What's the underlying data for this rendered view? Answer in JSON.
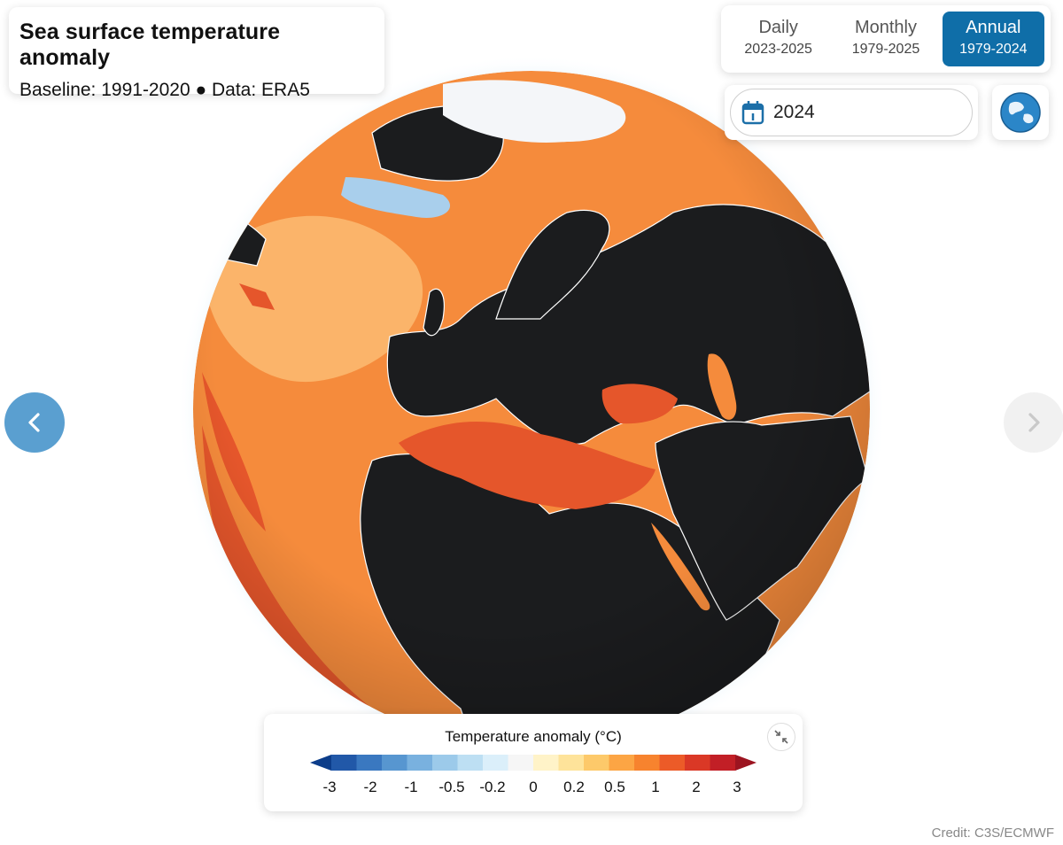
{
  "title": "Sea surface temperature anomaly",
  "subtitle": "Baseline: 1991-2020 ● Data: ERA5",
  "tabs": [
    {
      "label": "Daily",
      "range": "2023-2025",
      "active": false
    },
    {
      "label": "Monthly",
      "range": "1979-2025",
      "active": false
    },
    {
      "label": "Annual",
      "range": "1979-2024",
      "active": true
    }
  ],
  "date": {
    "value": "2024",
    "icon": "calendar-icon"
  },
  "globe_button": {
    "icon": "globe-icon"
  },
  "navigation": {
    "prev_icon": "chevron-left-icon",
    "next_icon": "chevron-right-icon"
  },
  "legend": {
    "title": "Temperature anomaly (°C)",
    "tick_labels": [
      "-3",
      "-2",
      "-1",
      "-0.5",
      "-0.2",
      "0",
      "0.2",
      "0.5",
      "1",
      "2",
      "3"
    ],
    "colors": [
      "#0c3d8a",
      "#2158a8",
      "#3a78c0",
      "#5796d0",
      "#79b1df",
      "#9ccaea",
      "#bddff3",
      "#dbeffa",
      "#f6f6f6",
      "#fff3c8",
      "#fee39a",
      "#fdc96a",
      "#fca544",
      "#f7832e",
      "#ec5b28",
      "#da3826",
      "#c21f26",
      "#9c1420"
    ],
    "collapse_icon": "collapse-icon"
  },
  "credit": "Credit: C3S/ECMWF",
  "map_colors": {
    "land": "#1b1c1e",
    "ocean_warm": "#f58b3c",
    "ocean_mild": "#fbb46a",
    "ocean_hot": "#e5562b",
    "ice": "#f4f6f9",
    "cool": "#a9cfec"
  }
}
